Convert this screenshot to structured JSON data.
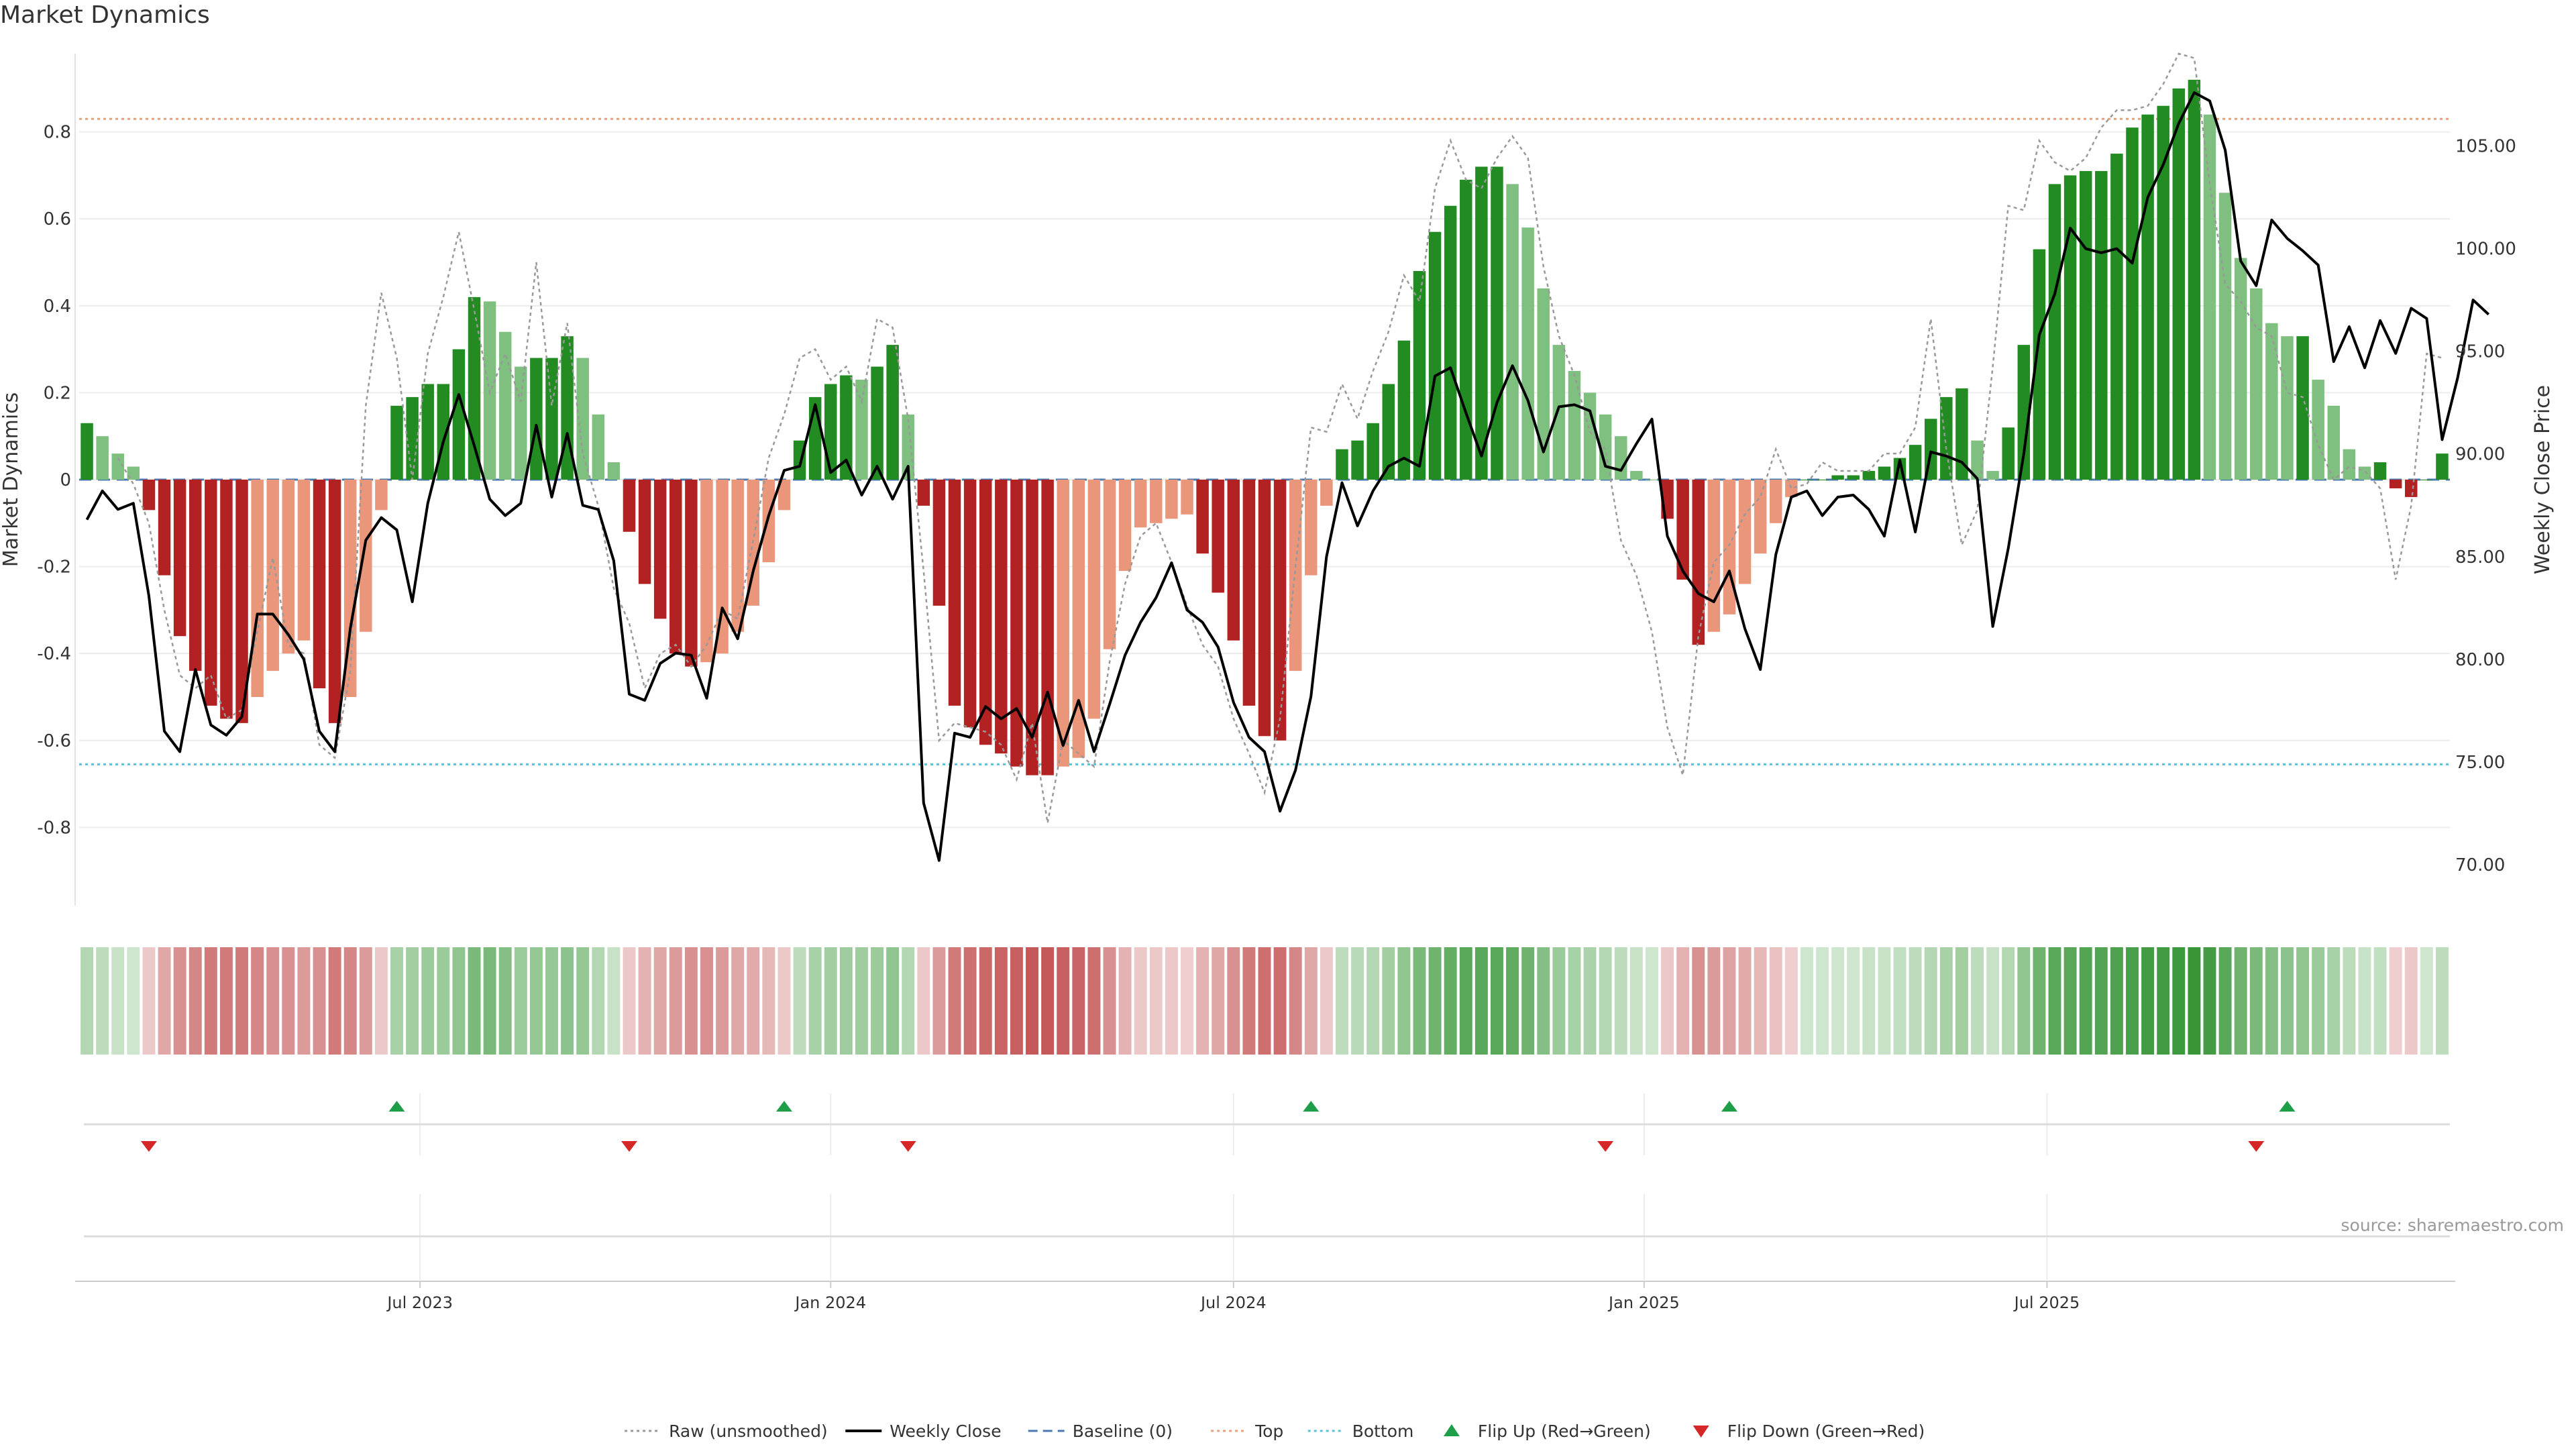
{
  "title": "Market Dynamics",
  "source": "source: sharemaestro.com",
  "colors": {
    "strong_green": "#228b22",
    "light_green": "#7fbf7f",
    "strong_red": "#b22222",
    "light_red": "#e9967a",
    "close_line": "#000000",
    "raw_line": "#999999",
    "baseline": "#4a78b0",
    "top_line": "#e8a07a",
    "bottom_line": "#5bc0de",
    "flip_up": "#1f9e4a",
    "flip_down": "#d62728"
  },
  "chart_data": {
    "type": "bar",
    "title": "Market Dynamics",
    "ylabel_left": "Market Dynamics",
    "ylabel_right": "Weekly Close Price",
    "ylim_left": [
      -0.98,
      0.98
    ],
    "ylim_right": [
      68.0,
      109.5
    ],
    "left_ticks": [
      "0.8",
      "0.6",
      "0.4",
      "0.2",
      "0",
      "-0.2",
      "-0.4",
      "-0.6",
      "-0.8"
    ],
    "left_tick_values": [
      0.8,
      0.6,
      0.4,
      0.2,
      0,
      -0.2,
      -0.4,
      -0.6,
      -0.8
    ],
    "right_ticks": [
      "105.00",
      "100.00",
      "95.00",
      "90.00",
      "85.00",
      "80.00",
      "75.00",
      "70.00"
    ],
    "right_tick_values": [
      105,
      100,
      95,
      90,
      85,
      80,
      75,
      70
    ],
    "x_ticks": [
      {
        "label": "Jul 2023",
        "week": 21.5
      },
      {
        "label": "Jan 2024",
        "week": 48
      },
      {
        "label": "Jul 2024",
        "week": 74
      },
      {
        "label": "Jan 2025",
        "week": 100.5
      },
      {
        "label": "Jul 2025",
        "week": 126.5
      }
    ],
    "top_threshold": 0.83,
    "bottom_threshold": -0.655,
    "momentum": [
      0.13,
      0.1,
      0.06,
      0.03,
      -0.07,
      -0.22,
      -0.36,
      -0.44,
      -0.52,
      -0.55,
      -0.56,
      -0.5,
      -0.44,
      -0.4,
      -0.37,
      -0.48,
      -0.56,
      -0.5,
      -0.35,
      -0.07,
      0.17,
      0.19,
      0.22,
      0.22,
      0.3,
      0.42,
      0.41,
      0.34,
      0.26,
      0.28,
      0.28,
      0.33,
      0.28,
      0.15,
      0.04,
      -0.12,
      -0.24,
      -0.32,
      -0.4,
      -0.43,
      -0.42,
      -0.4,
      -0.35,
      -0.29,
      -0.19,
      -0.07,
      0.09,
      0.19,
      0.22,
      0.24,
      0.23,
      0.26,
      0.31,
      0.15,
      -0.06,
      -0.29,
      -0.52,
      -0.57,
      -0.61,
      -0.63,
      -0.66,
      -0.68,
      -0.68,
      -0.66,
      -0.64,
      -0.55,
      -0.39,
      -0.21,
      -0.11,
      -0.1,
      -0.09,
      -0.08,
      -0.17,
      -0.26,
      -0.37,
      -0.52,
      -0.59,
      -0.6,
      -0.44,
      -0.22,
      -0.06,
      0.07,
      0.09,
      0.13,
      0.22,
      0.32,
      0.48,
      0.57,
      0.63,
      0.69,
      0.72,
      0.72,
      0.68,
      0.58,
      0.44,
      0.31,
      0.25,
      0.2,
      0.15,
      0.1,
      0.02,
      0.0,
      -0.09,
      -0.23,
      -0.38,
      -0.35,
      -0.31,
      -0.24,
      -0.17,
      -0.1,
      -0.04,
      0.0,
      0.0,
      0.01,
      0.01,
      0.02,
      0.03,
      0.05,
      0.08,
      0.14,
      0.19,
      0.21,
      0.09,
      0.02,
      0.12,
      0.31,
      0.53,
      0.68,
      0.7,
      0.71,
      0.71,
      0.75,
      0.81,
      0.84,
      0.86,
      0.9,
      0.92,
      0.84,
      0.66,
      0.51,
      0.44,
      0.36,
      0.33,
      0.33,
      0.23,
      0.17,
      0.07,
      0.03,
      0.04,
      -0.02,
      -0.04,
      0.0,
      0.06
    ],
    "weekly_close": [
      86.8,
      88.2,
      87.3,
      87.6,
      83.1,
      76.5,
      75.5,
      79.5,
      76.8,
      76.3,
      77.2,
      82.2,
      82.2,
      81.2,
      80.0,
      76.5,
      75.5,
      81.5,
      85.8,
      86.9,
      86.3,
      82.8,
      87.6,
      90.6,
      92.9,
      90.4,
      87.8,
      87.0,
      87.6,
      91.4,
      87.9,
      91.0,
      87.5,
      87.3,
      84.8,
      78.3,
      78.0,
      79.8,
      80.3,
      80.2,
      78.1,
      82.5,
      81.0,
      84.3,
      87.0,
      89.2,
      89.4,
      92.4,
      89.1,
      89.7,
      88.0,
      89.4,
      87.8,
      89.4,
      73.0,
      70.2,
      76.4,
      76.2,
      77.7,
      77.1,
      77.6,
      76.2,
      78.4,
      75.8,
      78.0,
      75.5,
      77.8,
      80.2,
      81.8,
      83.0,
      84.7,
      82.4,
      81.8,
      80.6,
      77.9,
      76.2,
      75.5,
      72.6,
      74.6,
      78.2,
      85.0,
      88.6,
      86.5,
      88.2,
      89.4,
      89.8,
      89.4,
      93.8,
      94.2,
      92.0,
      89.9,
      92.5,
      94.3,
      92.6,
      90.1,
      92.3,
      92.4,
      92.1,
      89.4,
      89.2,
      90.5,
      91.7,
      86.0,
      84.3,
      83.2,
      82.8,
      84.3,
      81.5,
      79.5,
      85.1,
      87.9,
      88.2,
      87.0,
      87.9,
      88.0,
      87.3,
      86.0,
      89.7,
      86.2,
      90.1,
      89.9,
      89.6,
      88.8,
      81.6,
      85.4,
      90.0,
      95.8,
      97.8,
      101.0,
      100.0,
      99.8,
      100.0,
      99.3,
      102.5,
      104.1,
      106.1,
      107.6,
      107.2,
      104.8,
      99.4,
      98.2,
      101.4,
      100.5,
      99.9,
      99.2,
      94.5,
      96.2,
      94.2,
      96.5,
      94.9,
      97.1,
      96.6,
      90.7,
      93.7,
      97.5,
      96.8
    ],
    "raw": [
      null,
      null,
      0.05,
      -0.01,
      -0.1,
      -0.3,
      -0.45,
      -0.48,
      -0.45,
      -0.55,
      -0.53,
      -0.35,
      -0.18,
      -0.38,
      -0.4,
      -0.61,
      -0.64,
      -0.44,
      0.17,
      0.43,
      0.28,
      0.0,
      0.29,
      0.42,
      0.57,
      0.39,
      0.2,
      0.29,
      0.18,
      0.5,
      0.17,
      0.36,
      0.06,
      -0.06,
      -0.25,
      -0.33,
      -0.48,
      -0.4,
      -0.38,
      -0.43,
      -0.38,
      -0.3,
      -0.32,
      -0.14,
      0.05,
      0.15,
      0.28,
      0.3,
      0.23,
      0.26,
      0.18,
      0.37,
      0.35,
      0.14,
      -0.21,
      -0.6,
      -0.56,
      -0.57,
      -0.58,
      -0.61,
      -0.69,
      -0.56,
      -0.79,
      -0.6,
      -0.63,
      -0.66,
      -0.42,
      -0.24,
      -0.13,
      -0.1,
      -0.19,
      -0.29,
      -0.38,
      -0.43,
      -0.55,
      -0.63,
      -0.72,
      -0.55,
      -0.2,
      0.12,
      0.11,
      0.22,
      0.14,
      0.25,
      0.34,
      0.47,
      0.41,
      0.67,
      0.78,
      0.69,
      0.67,
      0.74,
      0.79,
      0.74,
      0.49,
      0.33,
      0.24,
      0.11,
      0.07,
      -0.14,
      -0.22,
      -0.35,
      -0.57,
      -0.68,
      -0.36,
      -0.19,
      -0.15,
      -0.08,
      -0.04,
      0.07,
      -0.02,
      -0.01,
      0.04,
      0.02,
      0.02,
      0.02,
      0.06,
      0.06,
      0.12,
      0.37,
      0.07,
      -0.15,
      -0.07,
      0.26,
      0.63,
      0.62,
      0.78,
      0.73,
      0.71,
      0.74,
      0.81,
      0.85,
      0.85,
      0.86,
      0.91,
      0.98,
      0.97,
      0.68,
      0.45,
      0.41,
      0.35,
      0.33,
      0.2,
      0.19,
      0.08,
      0.0,
      0.03,
      0.02,
      -0.02,
      -0.23,
      -0.06,
      0.29,
      0.28
    ],
    "heat_strength": [
      0.35,
      0.3,
      0.25,
      0.22,
      0.25,
      0.4,
      0.5,
      0.55,
      0.6,
      0.6,
      0.6,
      0.55,
      0.5,
      0.5,
      0.45,
      0.5,
      0.6,
      0.55,
      0.45,
      0.25,
      0.4,
      0.42,
      0.45,
      0.45,
      0.5,
      0.6,
      0.6,
      0.55,
      0.45,
      0.48,
      0.48,
      0.52,
      0.48,
      0.35,
      0.25,
      0.25,
      0.35,
      0.4,
      0.45,
      0.5,
      0.5,
      0.45,
      0.4,
      0.38,
      0.32,
      0.25,
      0.3,
      0.4,
      0.42,
      0.44,
      0.43,
      0.45,
      0.5,
      0.35,
      0.25,
      0.45,
      0.6,
      0.65,
      0.68,
      0.7,
      0.72,
      0.75,
      0.75,
      0.72,
      0.7,
      0.65,
      0.5,
      0.35,
      0.25,
      0.25,
      0.25,
      0.22,
      0.35,
      0.4,
      0.5,
      0.6,
      0.65,
      0.65,
      0.55,
      0.4,
      0.25,
      0.3,
      0.32,
      0.35,
      0.42,
      0.5,
      0.6,
      0.65,
      0.7,
      0.75,
      0.75,
      0.75,
      0.72,
      0.65,
      0.55,
      0.45,
      0.4,
      0.38,
      0.35,
      0.3,
      0.25,
      0.22,
      0.25,
      0.35,
      0.5,
      0.45,
      0.42,
      0.38,
      0.32,
      0.28,
      0.22,
      0.22,
      0.22,
      0.22,
      0.22,
      0.25,
      0.25,
      0.28,
      0.3,
      0.35,
      0.4,
      0.42,
      0.3,
      0.25,
      0.35,
      0.5,
      0.65,
      0.75,
      0.75,
      0.78,
      0.78,
      0.8,
      0.82,
      0.85,
      0.85,
      0.88,
      0.9,
      0.85,
      0.75,
      0.65,
      0.6,
      0.55,
      0.52,
      0.5,
      0.45,
      0.4,
      0.3,
      0.25,
      0.28,
      0.22,
      0.25,
      0.22,
      0.3
    ],
    "flips": [
      {
        "type": "down",
        "week": 4
      },
      {
        "type": "up",
        "week": 20
      },
      {
        "type": "down",
        "week": 35
      },
      {
        "type": "up",
        "week": 45
      },
      {
        "type": "down",
        "week": 53
      },
      {
        "type": "up",
        "week": 79
      },
      {
        "type": "down",
        "week": 98
      },
      {
        "type": "up",
        "week": 106
      },
      {
        "type": "down",
        "week": 140
      },
      {
        "type": "up",
        "week": 142
      }
    ],
    "legend": [
      {
        "label": "Raw (unsmoothed)",
        "kind": "dotted",
        "color": "#999999"
      },
      {
        "label": "Weekly Close",
        "kind": "solid",
        "color": "#000000"
      },
      {
        "label": "Baseline (0)",
        "kind": "dashed",
        "color": "#4a78b0"
      },
      {
        "label": "Top",
        "kind": "dotted",
        "color": "#e8a07a"
      },
      {
        "label": "Bottom",
        "kind": "dotted",
        "color": "#5bc0de"
      },
      {
        "label": "Flip Up (Red→Green)",
        "kind": "up",
        "color": "#1f9e4a"
      },
      {
        "label": "Flip Down (Green→Red)",
        "kind": "down",
        "color": "#d62728"
      }
    ],
    "legend_position": "bottom-center"
  }
}
